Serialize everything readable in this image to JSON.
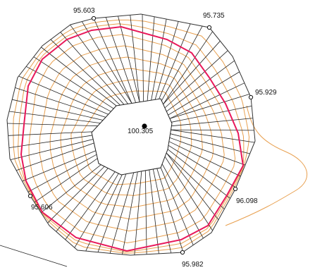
{
  "colors": {
    "background": "#ffffff",
    "radial_lines": "#222222",
    "outer_boundary": "#333333",
    "inner_boundary": "#222222",
    "magenta_contour": "#e8185a",
    "orange_contours": "#e8a050",
    "label_text": "#111111"
  },
  "labels": {
    "top_left": "95.603",
    "top_right": "95.735",
    "right": "95.929",
    "bottom_right": "96.098",
    "bottom": "95.982",
    "left": "95.606",
    "center": "100.305"
  }
}
